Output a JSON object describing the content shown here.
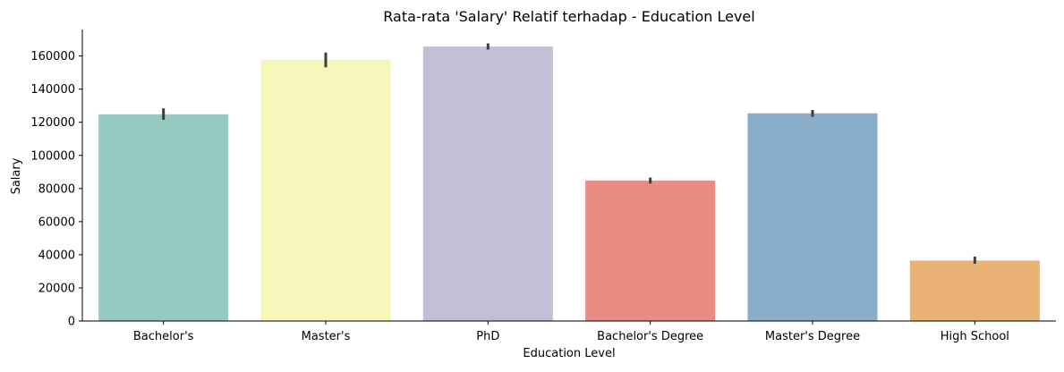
{
  "chart_data": {
    "type": "bar",
    "title": "Rata-rata 'Salary' Relatif terhadap - Education Level",
    "xlabel": "Education Level",
    "ylabel": "Salary",
    "categories": [
      "Bachelor's",
      "Master's",
      "PhD",
      "Bachelor's Degree",
      "Master's Degree",
      "High School"
    ],
    "values": [
      124800,
      157700,
      165700,
      84800,
      125400,
      36500
    ],
    "error_bars": [
      [
        121500,
        128400
      ],
      [
        153200,
        162100
      ],
      [
        163900,
        167600
      ],
      [
        83000,
        86600
      ],
      [
        123300,
        127400
      ],
      [
        34600,
        38900
      ]
    ],
    "colors": [
      "#96c9bf",
      "#f6f6bb",
      "#c1bed6",
      "#e98d83",
      "#8aaec9",
      "#eab375"
    ],
    "error_bar_color": "#3d3d3d",
    "ylim": [
      0,
      176000
    ],
    "yticks": [
      0,
      20000,
      40000,
      60000,
      80000,
      100000,
      120000,
      140000,
      160000
    ],
    "ytick_labels": [
      "0",
      "20000",
      "40000",
      "60000",
      "80000",
      "100000",
      "120000",
      "140000",
      "160000"
    ],
    "grid": false,
    "legend": "none"
  }
}
